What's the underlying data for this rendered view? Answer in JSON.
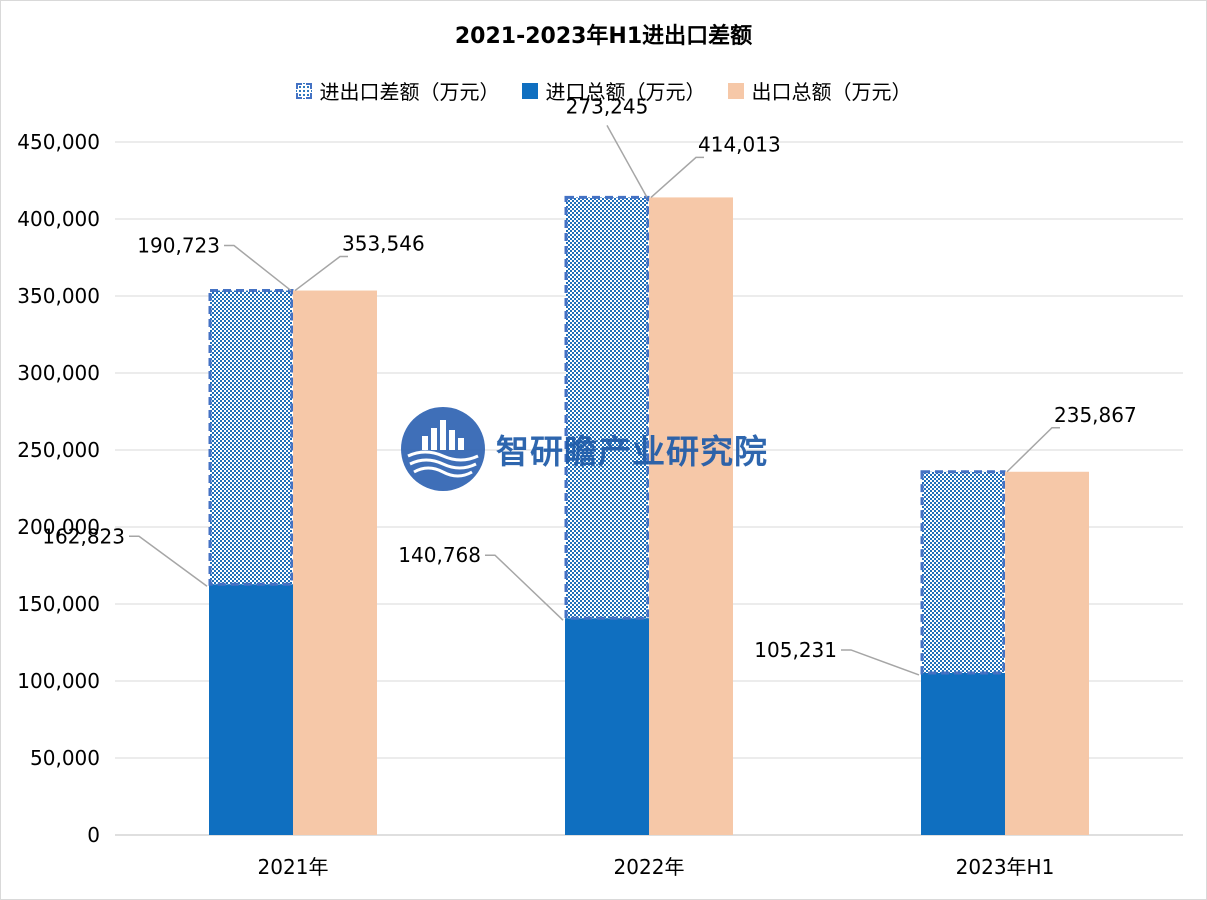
{
  "chart_data": {
    "type": "bar",
    "title": "2021-2023年H1进出口差额",
    "categories": [
      "2021年",
      "2022年",
      "2023年H1"
    ],
    "series": [
      {
        "name": "进口总额（万元）",
        "values": [
          162823,
          140768,
          105231
        ],
        "color": "#0f6fc0"
      },
      {
        "name": "进出口差额（万元）",
        "values": [
          190723,
          273245,
          130636
        ],
        "color": "#1f6fb8",
        "stacked_on": "进口总额（万元）"
      },
      {
        "name": "出口总额（万元）",
        "values": [
          353546,
          414013,
          235867
        ],
        "color": "#f6c8a8"
      }
    ],
    "data_labels": {
      "import": [
        "162,823",
        "140,768",
        "105,231"
      ],
      "difference": [
        "190,723",
        "273,245",
        ""
      ],
      "export": [
        "353,546",
        "414,013",
        "235,867"
      ]
    },
    "ylim": [
      0,
      450000
    ],
    "yticks": [
      0,
      50000,
      100000,
      150000,
      200000,
      250000,
      300000,
      350000,
      400000,
      450000
    ],
    "ytick_labels": [
      "0",
      "50,000",
      "100,000",
      "150,000",
      "200,000",
      "250,000",
      "300,000",
      "350,000",
      "400,000",
      "450,000"
    ],
    "xlabel": "",
    "ylabel": "",
    "grid": true,
    "legend_position": "top"
  },
  "legend": [
    {
      "label": "进出口差额（万元）",
      "swatch": "diff"
    },
    {
      "label": "进口总额（万元）",
      "swatch": "import"
    },
    {
      "label": "出口总额（万元）",
      "swatch": "export"
    }
  ],
  "watermark": {
    "text": "智研瞻产业研究院"
  }
}
